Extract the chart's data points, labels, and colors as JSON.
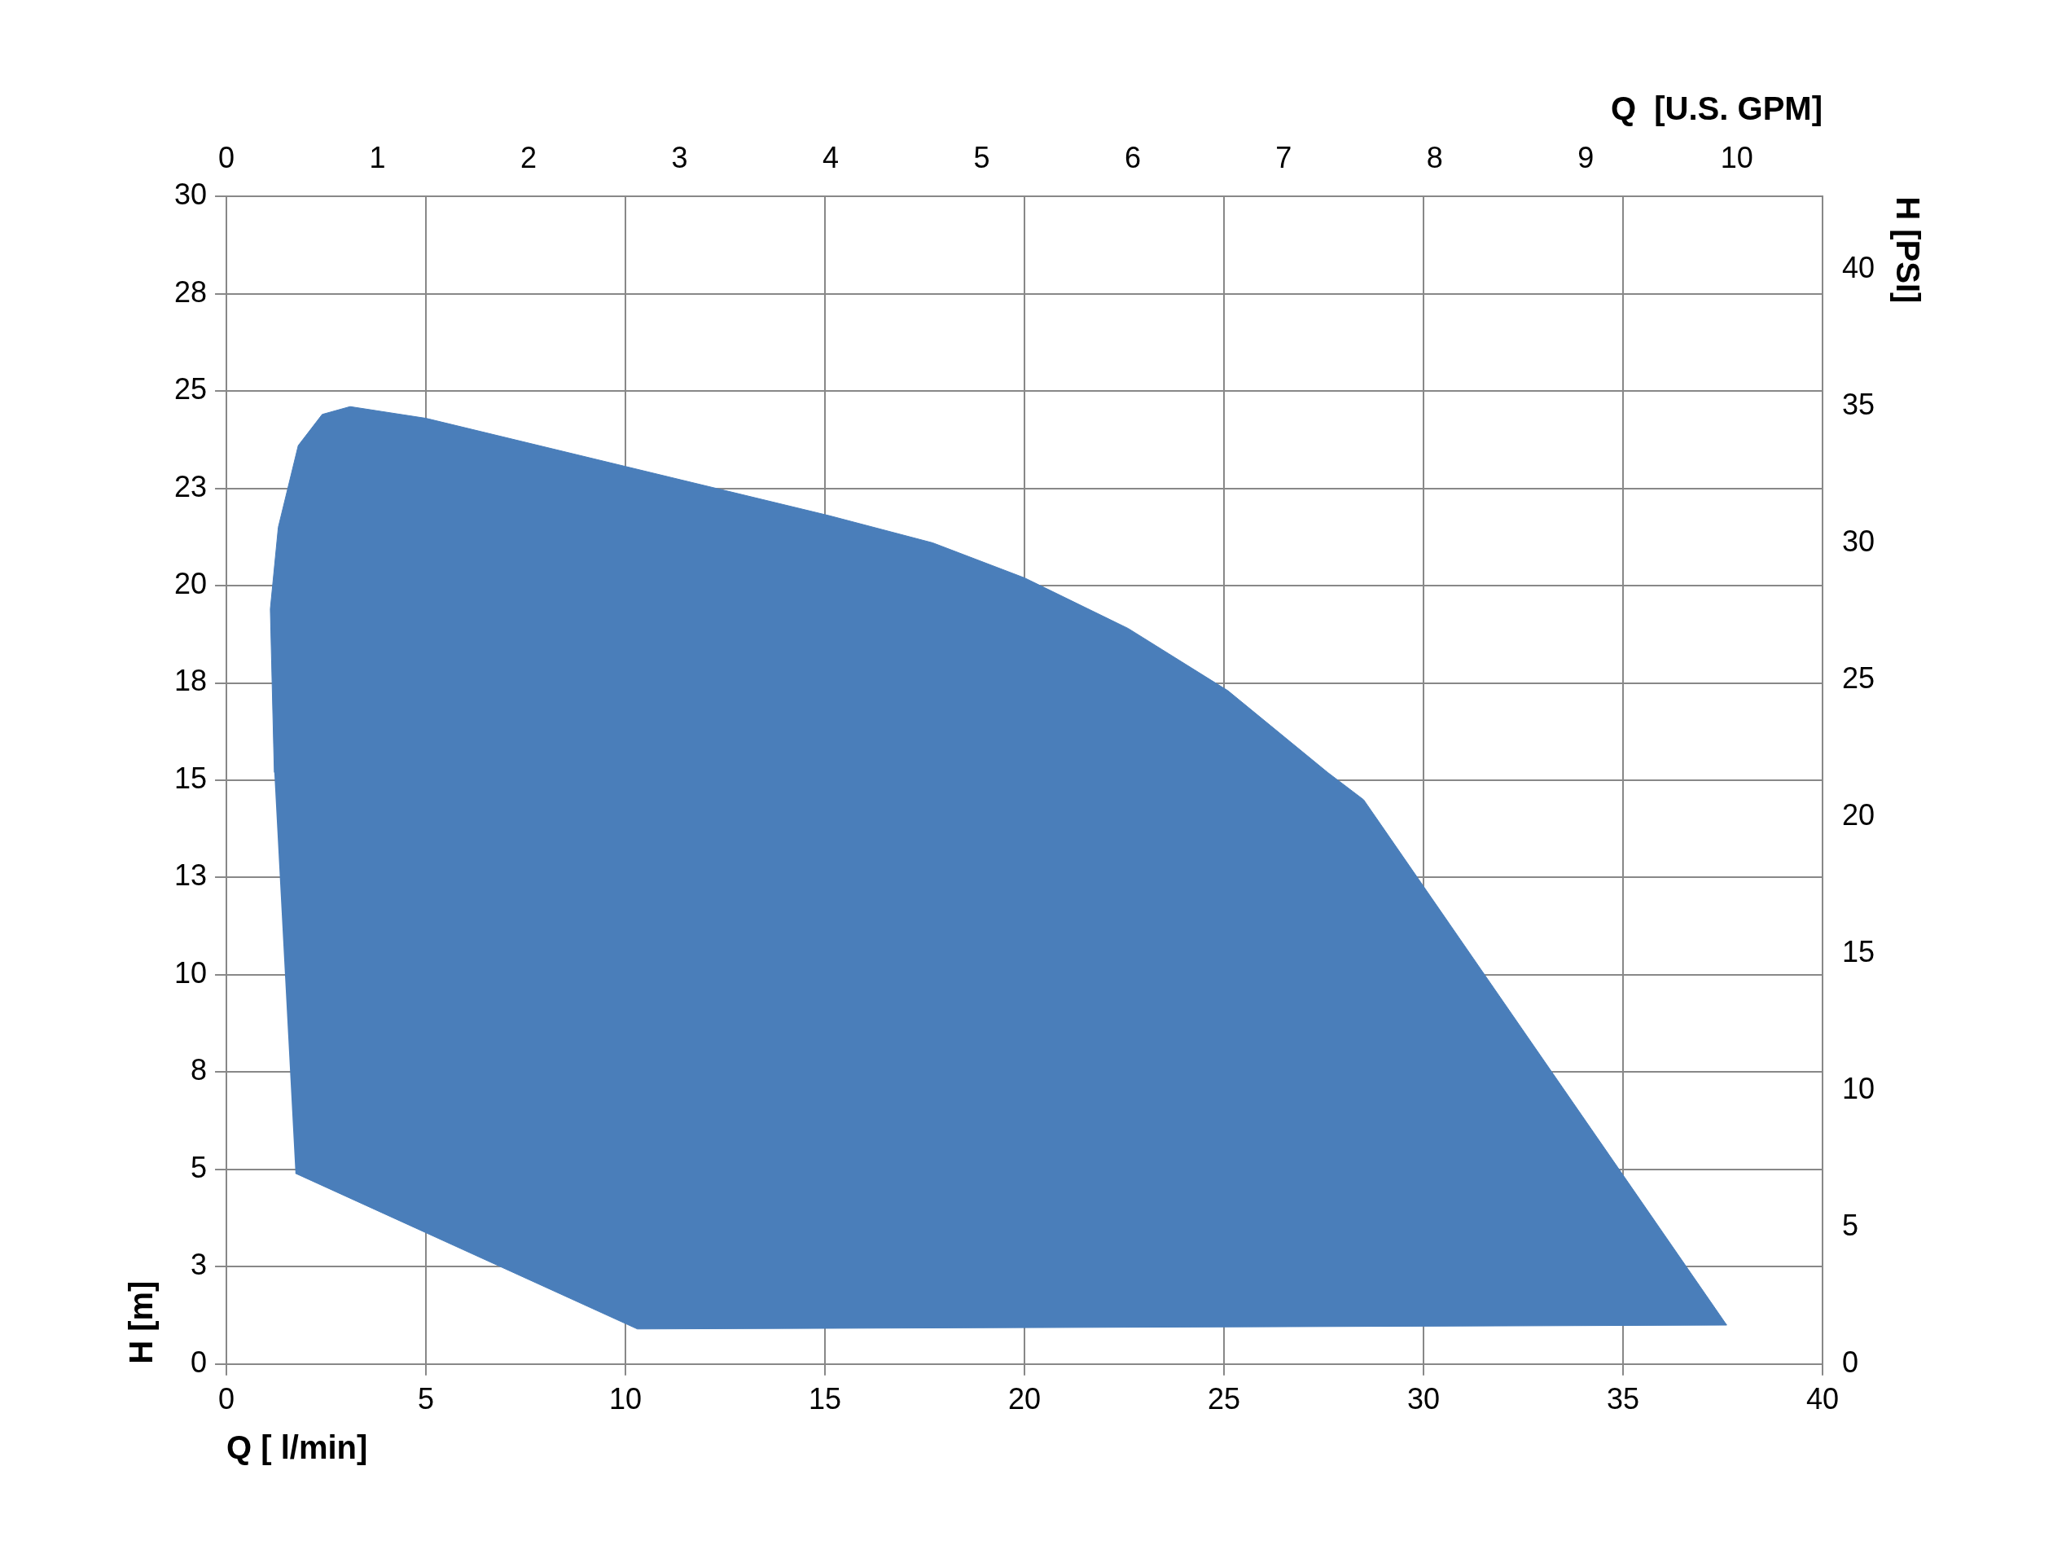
{
  "chart_data": {
    "type": "area",
    "xlabel": "Q [ l/min]",
    "ylabel": "H [m]",
    "x2label": "Q  [U.S. GPM]",
    "y2label": "H [PSI]",
    "series": [
      {
        "color": "#4a7eba",
        "x": [
          1.73,
          10.3,
          37.6,
          28.5,
          27.6,
          25.1,
          22.6,
          20.0,
          17.7,
          15.1,
          5.0,
          3.1,
          2.4,
          1.8,
          1.3,
          1.1,
          1.2
        ],
        "values": [
          4.9,
          0.9,
          1.0,
          14.5,
          15.2,
          17.3,
          18.9,
          20.2,
          21.1,
          21.8,
          24.3,
          24.6,
          24.4,
          23.6,
          21.5,
          19.4,
          15.2
        ]
      }
    ],
    "xlim": [
      0,
      40
    ],
    "xticks": [
      0,
      5,
      10,
      15,
      20,
      25,
      30,
      35,
      40
    ],
    "ylim": [
      0,
      30
    ],
    "yticks": [
      0,
      {
        "value": 2.5,
        "label": "3"
      },
      5,
      {
        "value": 7.5,
        "label": "8"
      },
      10,
      {
        "value": 12.5,
        "label": "13"
      },
      15,
      {
        "value": 17.5,
        "label": "18"
      },
      20,
      {
        "value": 22.5,
        "label": "23"
      },
      25,
      {
        "value": 27.5,
        "label": "28"
      },
      30
    ],
    "x2lim": [
      0,
      10.567
    ],
    "x2ticks": [
      0,
      1,
      2,
      3,
      4,
      5,
      6,
      7,
      8,
      9,
      10
    ],
    "y2lim": [
      0,
      42.67
    ],
    "y2ticks": [
      0,
      5,
      10,
      15,
      20,
      25,
      30,
      35,
      40
    ],
    "grid": true,
    "legend": false
  }
}
